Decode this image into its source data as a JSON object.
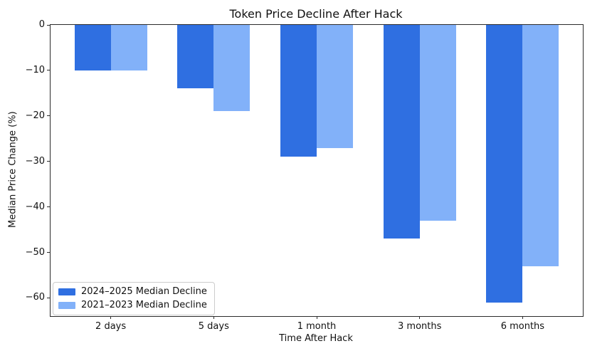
{
  "chart_data": {
    "type": "bar",
    "title": "Token Price Decline After Hack",
    "xlabel": "Time After Hack",
    "ylabel": "Median Price Change (%)",
    "categories": [
      "2 days",
      "5 days",
      "1 month",
      "3 months",
      "6 months"
    ],
    "series": [
      {
        "name": "2024–2025 Median Decline",
        "color": "#2f6fe1",
        "values": [
          -10,
          -14,
          -29,
          -47,
          -61
        ]
      },
      {
        "name": "2021–2023 Median Decline",
        "color": "#82b1f9",
        "values": [
          -10,
          -19,
          -27,
          -43,
          -53
        ]
      }
    ],
    "yticks": [
      0,
      -10,
      -20,
      -30,
      -40,
      -50,
      -60
    ],
    "ylim": [
      -64,
      0
    ],
    "grid": false,
    "legend_position": "lower left",
    "background": "#ffffff",
    "spine_color": "#2b2b2b"
  }
}
